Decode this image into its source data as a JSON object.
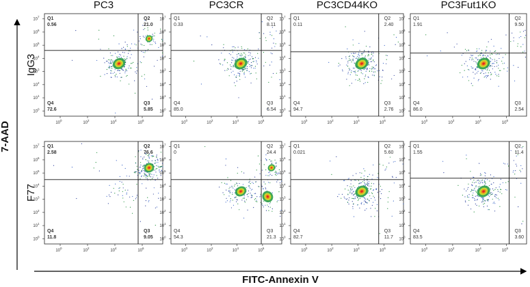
{
  "columns": [
    "PC3",
    "PC3CR",
    "PC3CD44KO",
    "PC3Fut1KO"
  ],
  "rows": [
    {
      "label": "IgG3",
      "panels": [
        {
          "q1": "0.56",
          "q2": "21.0",
          "q3": "5.85",
          "q4": "72.6"
        },
        {
          "q1": "0.33",
          "q2": "8.11",
          "q3": "6.54",
          "q4": "85.0"
        },
        {
          "q1": "0.11",
          "q2": "2.40",
          "q3": "2.76",
          "q4": "94.7"
        },
        {
          "q1": "1.91",
          "q2": "9.50",
          "q3": "2.54",
          "q4": "86.0"
        }
      ]
    },
    {
      "label": "F77",
      "panels": [
        {
          "q1": "2.58",
          "q2": "76.6",
          "q3": "9.05",
          "q4": "11.8"
        },
        {
          "q1": "0",
          "q2": "24.4",
          "q3": "21.3",
          "q4": "54.3"
        },
        {
          "q1": "0.021",
          "q2": "5.60",
          "q3": "11.7",
          "q4": "82.7"
        },
        {
          "q1": "1.55",
          "q2": "11.4",
          "q3": "3.60",
          "q4": "83.5"
        }
      ]
    }
  ],
  "quadrant_names": [
    "Q1",
    "Q2",
    "Q3",
    "Q4"
  ],
  "axis": {
    "base": "10",
    "yticks": [
      "0",
      "1",
      "2",
      "3",
      "4",
      "5",
      "6",
      "7"
    ],
    "xticks": [
      "0",
      "2",
      "4",
      "6"
    ],
    "y_label": "7-AAD",
    "x_label": "FITC-Annexin V"
  }
}
